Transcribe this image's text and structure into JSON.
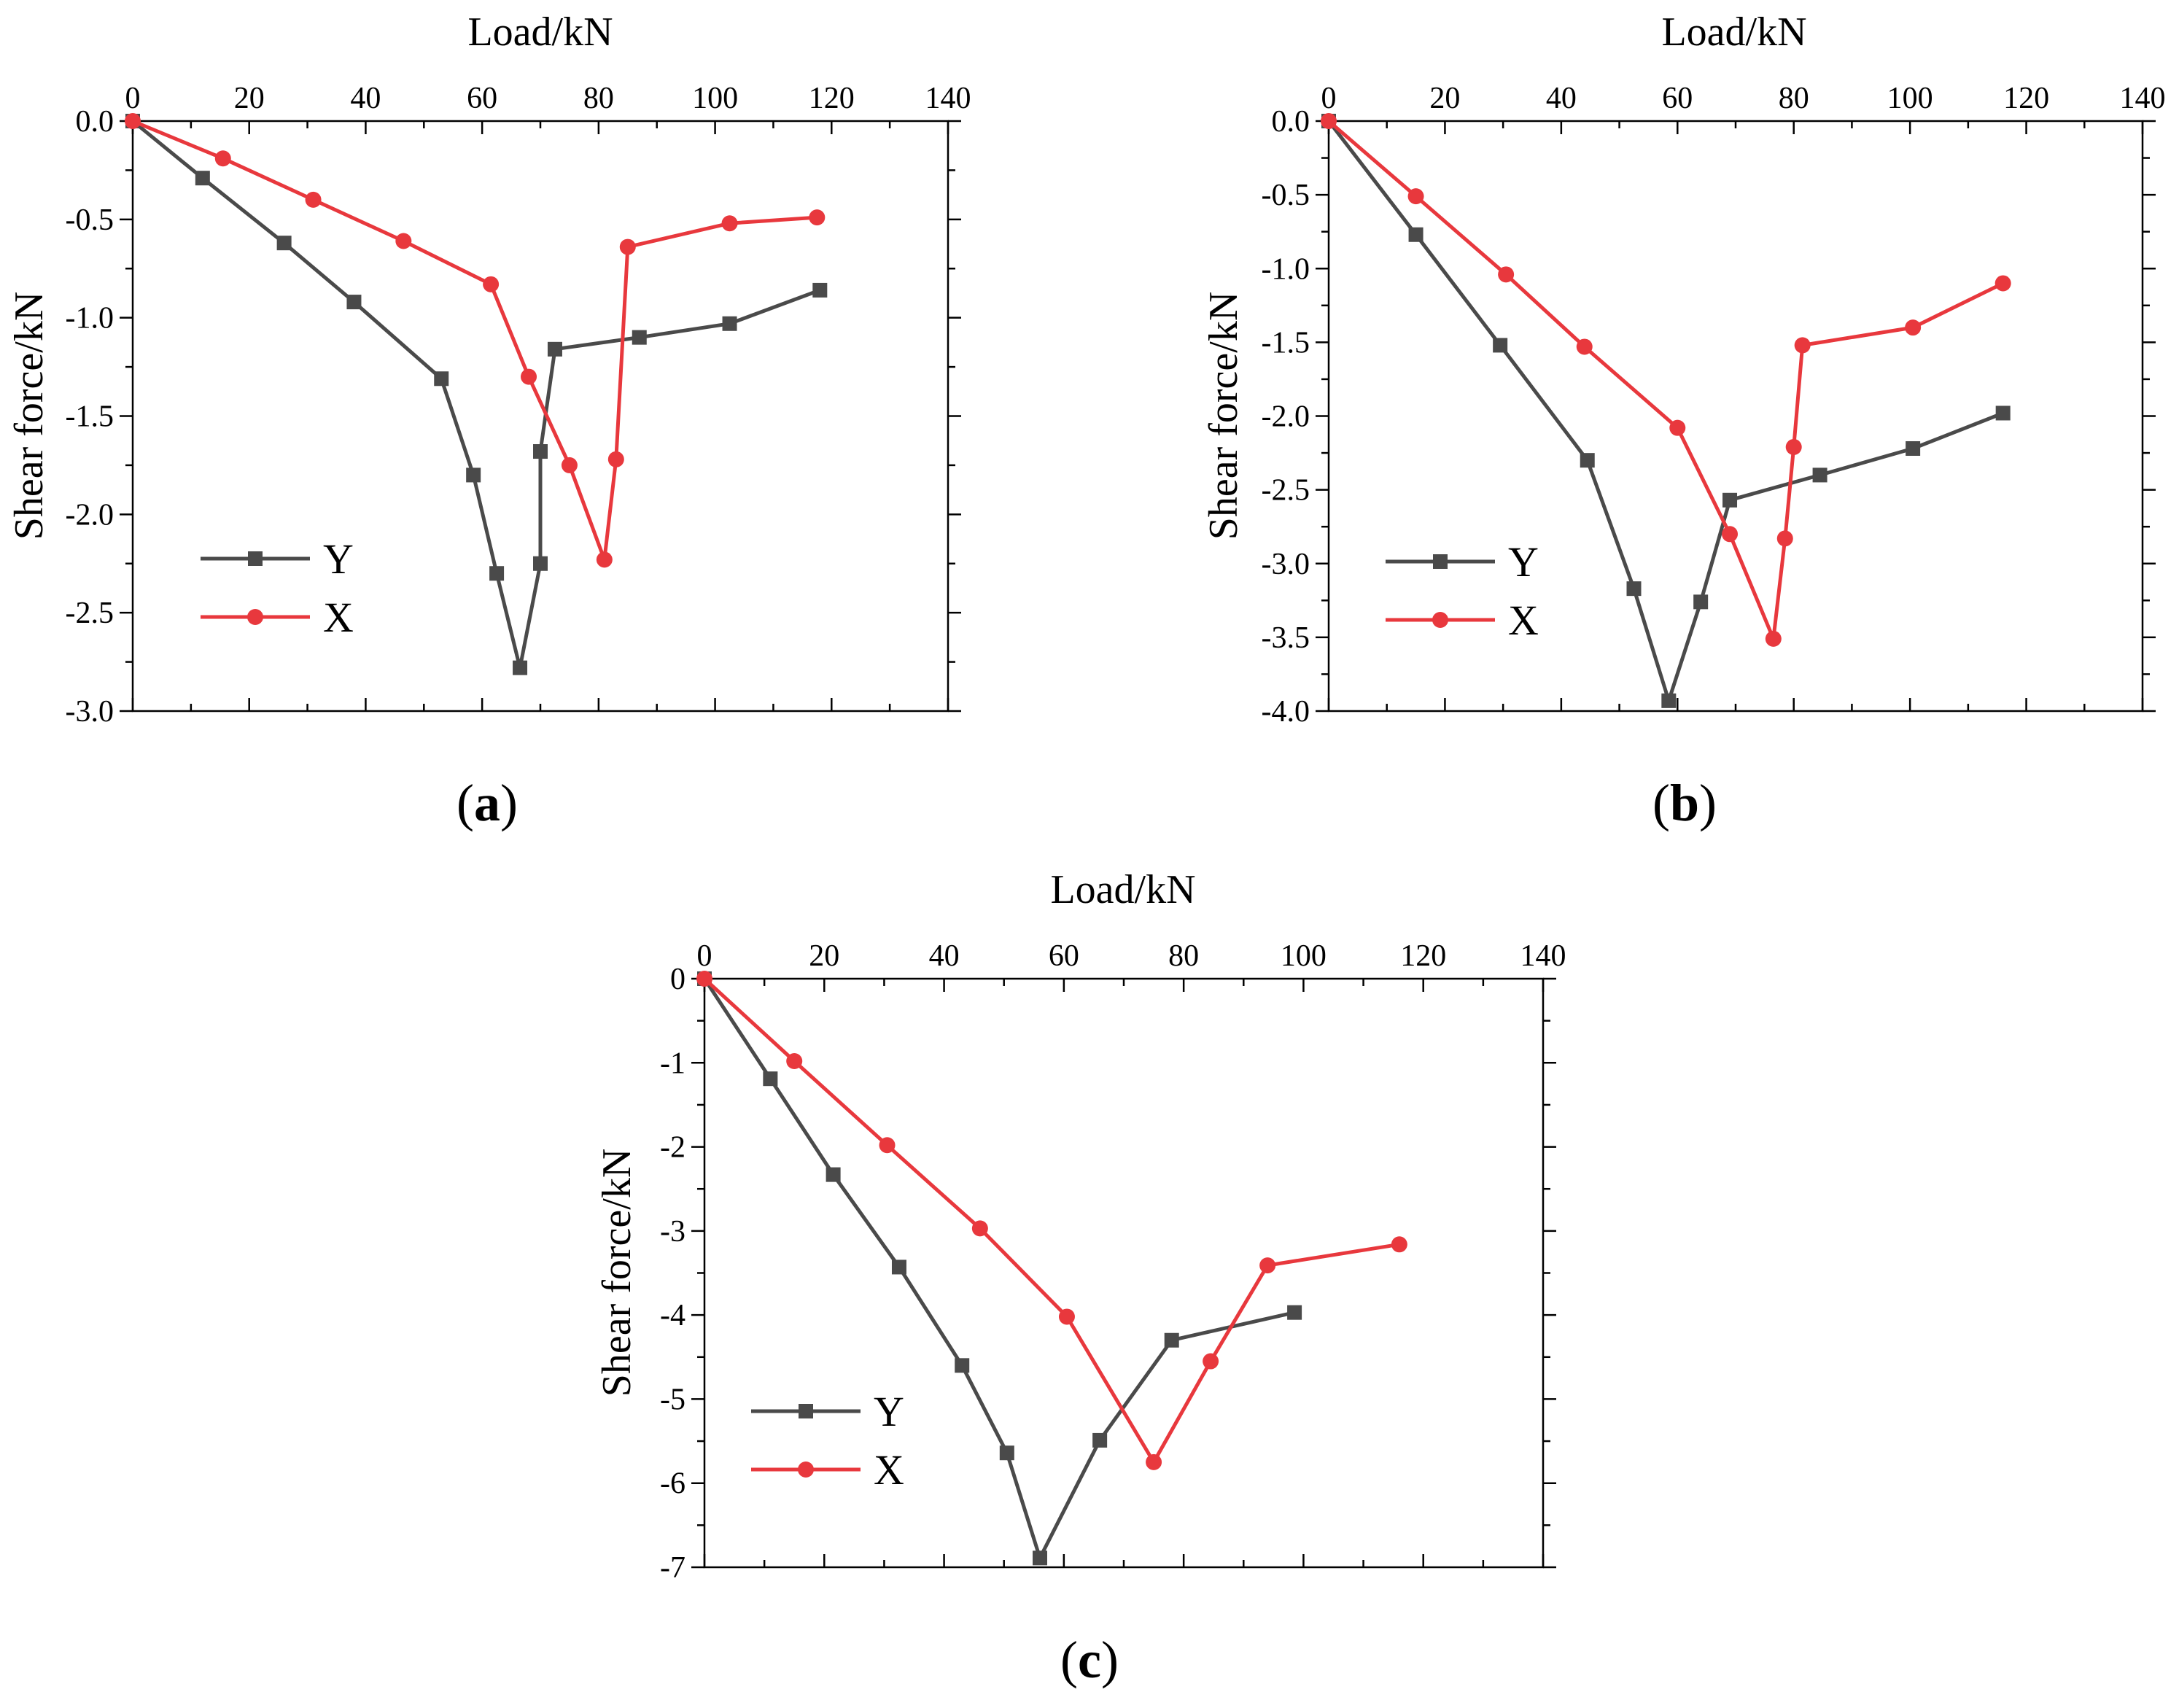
{
  "figure": {
    "colors": {
      "Y": "#4a4a4a",
      "X": "#e8383d"
    }
  },
  "chart_data": [
    {
      "type": "line",
      "panel_label": "(a)",
      "panel_letter": "a",
      "xlabel": "Load/kN",
      "ylabel": "Shear force/kN",
      "xlim": [
        0,
        140
      ],
      "ylim": [
        -3.0,
        0.0
      ],
      "x_ticks": [
        "0",
        "20",
        "40",
        "60",
        "80",
        "100",
        "120",
        "140"
      ],
      "y_ticks": [
        "0.0",
        "-0.5",
        "-1.0",
        "-1.5",
        "-2.0",
        "-2.5",
        "-3.0"
      ],
      "legend_position": "lower-left",
      "series": [
        {
          "name": "Y",
          "marker": "square",
          "x": [
            0,
            12,
            26,
            38,
            53,
            58.5,
            62.5,
            66.5,
            70,
            70,
            72.5,
            87,
            102.5,
            118
          ],
          "y": [
            0,
            -0.29,
            -0.62,
            -0.92,
            -1.31,
            -1.8,
            -2.3,
            -2.78,
            -2.25,
            -1.68,
            -1.16,
            -1.1,
            -1.03,
            -0.86
          ]
        },
        {
          "name": "X",
          "marker": "circle",
          "x": [
            0,
            15.5,
            31,
            46.5,
            61.5,
            68,
            75,
            81,
            83,
            85,
            102.5,
            117.5
          ],
          "y": [
            0,
            -0.19,
            -0.4,
            -0.61,
            -0.83,
            -1.3,
            -1.75,
            -2.23,
            -1.72,
            -0.64,
            -0.52,
            -0.49
          ]
        }
      ]
    },
    {
      "type": "line",
      "panel_label": "(b)",
      "panel_letter": "b",
      "xlabel": "Load/kN",
      "ylabel": "Shear force/kN",
      "xlim": [
        0,
        140
      ],
      "ylim": [
        -4.0,
        0.0
      ],
      "x_ticks": [
        "0",
        "20",
        "40",
        "60",
        "80",
        "100",
        "120",
        "140"
      ],
      "y_ticks": [
        "0.0",
        "-0.5",
        "-1.0",
        "-1.5",
        "-2.0",
        "-2.5",
        "-3.0",
        "-3.5",
        "-4.0"
      ],
      "legend_position": "lower-left",
      "series": [
        {
          "name": "Y",
          "marker": "square",
          "x": [
            0,
            15,
            29.5,
            44.5,
            52.5,
            58.5,
            64,
            69,
            84.5,
            100.5,
            116
          ],
          "y": [
            0,
            -0.77,
            -1.52,
            -2.3,
            -3.17,
            -3.93,
            -3.26,
            -2.57,
            -2.4,
            -2.22,
            -1.98
          ]
        },
        {
          "name": "X",
          "marker": "circle",
          "x": [
            0,
            15,
            30.5,
            44,
            60,
            69,
            76.5,
            78.5,
            80,
            81.5,
            100.5,
            116
          ],
          "y": [
            0,
            -0.51,
            -1.04,
            -1.53,
            -2.08,
            -2.8,
            -3.51,
            -2.83,
            -2.21,
            -1.52,
            -1.4,
            -1.1
          ]
        }
      ]
    },
    {
      "type": "line",
      "panel_label": "(c)",
      "panel_letter": "c",
      "xlabel": "Load/kN",
      "ylabel": "Shear force/kN",
      "xlim": [
        0,
        140
      ],
      "ylim": [
        -7,
        0
      ],
      "x_ticks": [
        "0",
        "20",
        "40",
        "60",
        "80",
        "100",
        "120",
        "140"
      ],
      "y_ticks": [
        "0",
        "-1",
        "-2",
        "-3",
        "-4",
        "-5",
        "-6",
        "-7"
      ],
      "legend_position": "lower-left",
      "series": [
        {
          "name": "Y",
          "marker": "square",
          "x": [
            0,
            11,
            21.5,
            32.5,
            43,
            50.5,
            56,
            66,
            78,
            98.5
          ],
          "y": [
            0,
            -1.19,
            -2.33,
            -3.43,
            -4.6,
            -5.64,
            -6.89,
            -5.49,
            -4.3,
            -3.97
          ]
        },
        {
          "name": "X",
          "marker": "circle",
          "x": [
            0,
            15,
            30.5,
            46,
            60.5,
            75,
            84.5,
            94,
            116
          ],
          "y": [
            0,
            -0.98,
            -1.98,
            -2.97,
            -4.02,
            -5.75,
            -4.55,
            -3.41,
            -3.16
          ]
        }
      ]
    }
  ]
}
